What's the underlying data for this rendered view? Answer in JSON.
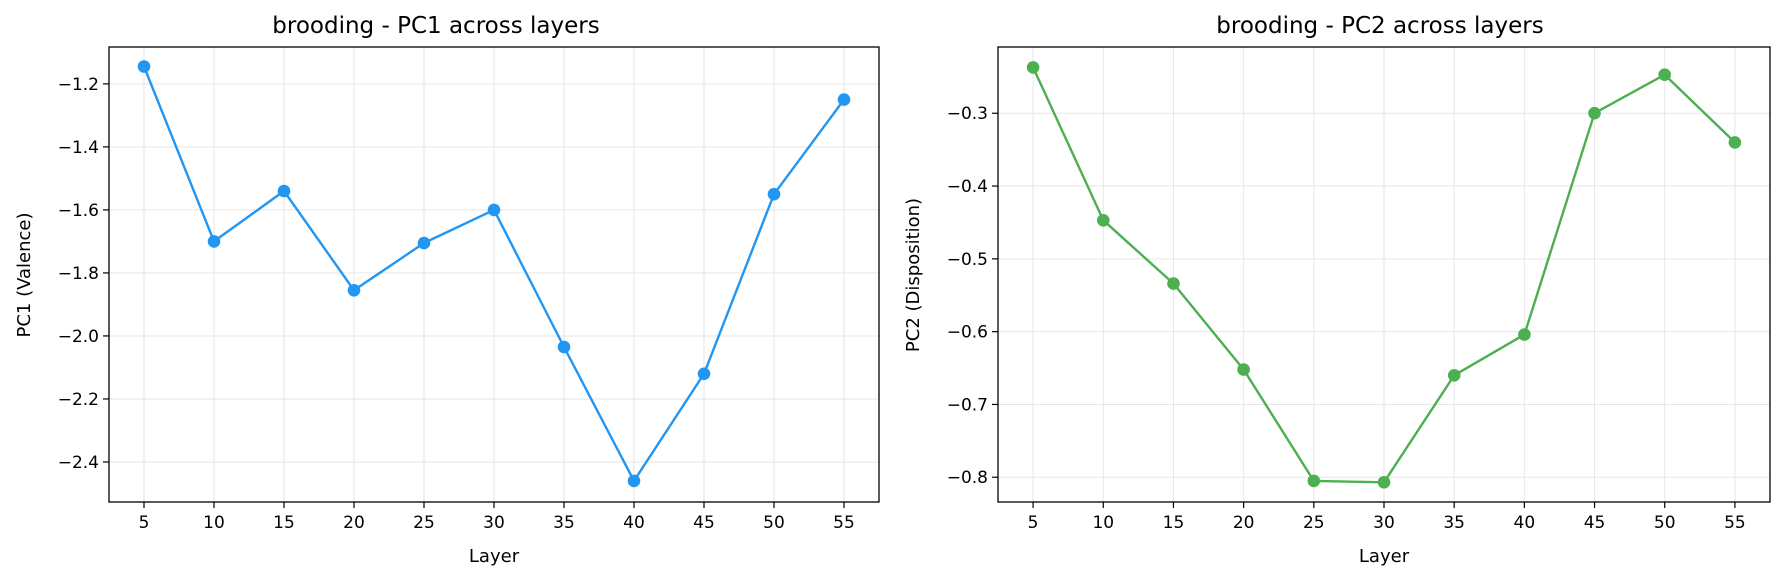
{
  "chart_data": [
    {
      "type": "line",
      "title": "brooding - PC1 across layers",
      "xlabel": "Layer",
      "ylabel": "PC1 (Valence)",
      "x": [
        5,
        10,
        15,
        20,
        25,
        30,
        35,
        40,
        45,
        50,
        55
      ],
      "xticks": [
        "5",
        "10",
        "15",
        "20",
        "25",
        "30",
        "35",
        "40",
        "45",
        "50",
        "55"
      ],
      "yticks": [
        "−2.4",
        "−2.2",
        "−2.0",
        "−1.8",
        "−1.6",
        "−1.4",
        "−1.2"
      ],
      "ytick_values": [
        -2.4,
        -2.2,
        -2.0,
        -1.8,
        -1.6,
        -1.4,
        -1.2
      ],
      "xlim": [
        2.5,
        57.5
      ],
      "ylim": [
        -2.527,
        -1.083
      ],
      "grid": true,
      "color": "#2196F3",
      "values": [
        -1.145,
        -1.7,
        -1.54,
        -1.855,
        -1.705,
        -1.6,
        -2.035,
        -2.46,
        -2.12,
        -1.55,
        -1.25
      ]
    },
    {
      "type": "line",
      "title": "brooding - PC2 across layers",
      "xlabel": "Layer",
      "ylabel": "PC2 (Disposition)",
      "x": [
        5,
        10,
        15,
        20,
        25,
        30,
        35,
        40,
        45,
        50,
        55
      ],
      "xticks": [
        "5",
        "10",
        "15",
        "20",
        "25",
        "30",
        "35",
        "40",
        "45",
        "50",
        "55"
      ],
      "yticks": [
        "−0.8",
        "−0.7",
        "−0.6",
        "−0.5",
        "−0.4",
        "−0.3"
      ],
      "ytick_values": [
        -0.8,
        -0.7,
        -0.6,
        -0.5,
        -0.4,
        -0.3
      ],
      "xlim": [
        2.5,
        57.5
      ],
      "ylim": [
        -0.834,
        -0.209
      ],
      "grid": true,
      "color": "#4CAF50",
      "values": [
        -0.237,
        -0.447,
        -0.534,
        -0.652,
        -0.805,
        -0.807,
        -0.66,
        -0.604,
        -0.3,
        -0.247,
        -0.34
      ]
    }
  ]
}
